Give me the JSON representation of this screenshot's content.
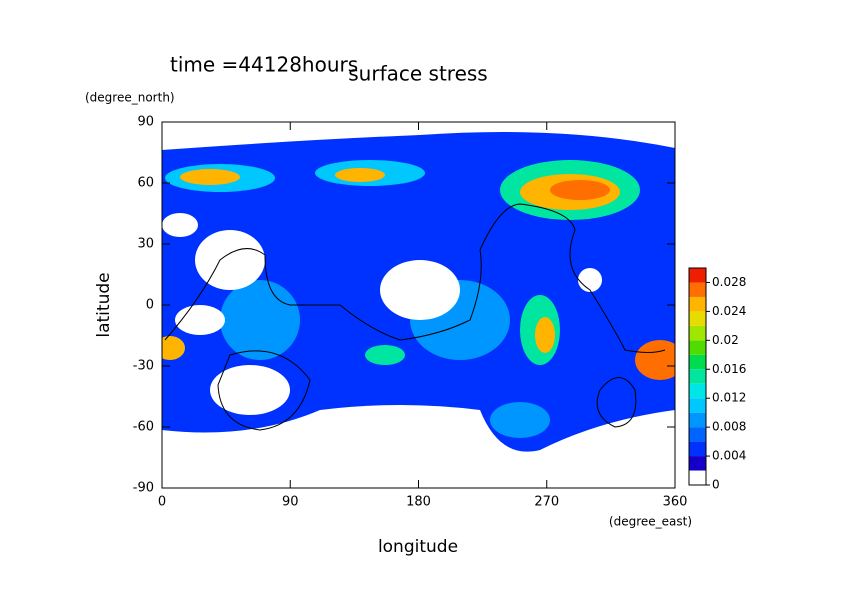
{
  "chart_data": {
    "type": "contour",
    "title": "surface stress",
    "subtitle": "time =44128hours",
    "xlabel": "longitude",
    "xunit": "(degree_east)",
    "ylabel": "latitude",
    "yunit": "(degree_north)",
    "xlim": [
      0,
      360
    ],
    "xticks": [
      0,
      90,
      180,
      270,
      360
    ],
    "ylim": [
      -90,
      90
    ],
    "yticks": [
      -90,
      -60,
      -30,
      0,
      30,
      60,
      90
    ],
    "colorbar": {
      "clim": [
        0,
        0.03
      ],
      "ticks": [
        0,
        0.004,
        0.008,
        0.012,
        0.016,
        0.02,
        0.024,
        0.028
      ],
      "colors": [
        "#ffffff",
        "#1400c8",
        "#0032ff",
        "#0064ff",
        "#0096ff",
        "#00c8ff",
        "#00e6e6",
        "#00e6a0",
        "#00dc50",
        "#50dc00",
        "#a0e600",
        "#e6dc00",
        "#ffb400",
        "#ff6e00",
        "#f01e00"
      ]
    }
  }
}
